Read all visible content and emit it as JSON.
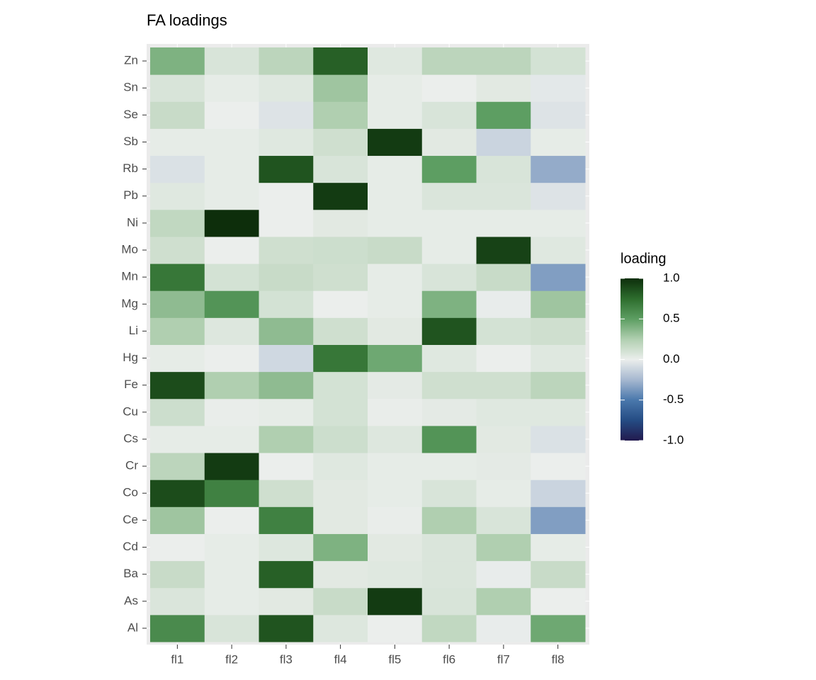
{
  "chart_data": {
    "type": "heatmap",
    "title": "FA loadings",
    "x": [
      "fl1",
      "fl2",
      "fl3",
      "fl4",
      "fl5",
      "fl6",
      "fl7",
      "fl8"
    ],
    "y": [
      "Al",
      "As",
      "Ba",
      "Cd",
      "Ce",
      "Co",
      "Cr",
      "Cs",
      "Cu",
      "Fe",
      "Hg",
      "Li",
      "Mg",
      "Mn",
      "Mo",
      "Ni",
      "Pb",
      "Rb",
      "Sb",
      "Se",
      "Sn",
      "Zn"
    ],
    "values": [
      [
        0.6,
        0.08,
        0.85,
        0.06,
        0.0,
        0.18,
        -0.01,
        0.45
      ],
      [
        0.07,
        0.02,
        0.04,
        0.15,
        0.95,
        0.08,
        0.25,
        0.0
      ],
      [
        0.15,
        0.02,
        0.8,
        0.04,
        0.05,
        0.07,
        -0.01,
        0.15
      ],
      [
        0.0,
        0.02,
        0.06,
        0.4,
        0.04,
        0.07,
        0.25,
        0.02
      ],
      [
        0.3,
        0.0,
        0.65,
        0.04,
        0.01,
        0.25,
        0.08,
        -0.35
      ],
      [
        0.88,
        0.65,
        0.12,
        0.04,
        0.02,
        0.08,
        0.02,
        -0.12
      ],
      [
        0.2,
        0.95,
        0.0,
        0.05,
        0.02,
        0.02,
        0.03,
        0.0
      ],
      [
        0.02,
        0.02,
        0.25,
        0.13,
        0.06,
        0.55,
        0.04,
        -0.06
      ],
      [
        0.13,
        0.01,
        0.02,
        0.1,
        0.01,
        0.03,
        0.05,
        0.05
      ],
      [
        0.88,
        0.25,
        0.35,
        0.1,
        0.03,
        0.12,
        0.12,
        0.2
      ],
      [
        0.02,
        0.0,
        -0.1,
        0.7,
        0.45,
        0.05,
        0.0,
        0.05
      ],
      [
        0.25,
        0.06,
        0.35,
        0.12,
        0.04,
        0.85,
        0.1,
        0.12
      ],
      [
        0.35,
        0.55,
        0.1,
        0.0,
        0.02,
        0.4,
        -0.01,
        0.3
      ],
      [
        0.7,
        0.1,
        0.15,
        0.12,
        0.02,
        0.08,
        0.15,
        -0.35
      ],
      [
        0.12,
        0.0,
        0.12,
        0.13,
        0.15,
        0.02,
        0.92,
        0.05
      ],
      [
        0.18,
        1.0,
        0.0,
        0.04,
        0.02,
        0.02,
        0.02,
        0.02
      ],
      [
        0.05,
        0.02,
        0.0,
        0.95,
        0.02,
        0.07,
        0.07,
        -0.05
      ],
      [
        -0.06,
        0.02,
        0.85,
        0.08,
        0.02,
        0.5,
        0.08,
        -0.3
      ],
      [
        0.02,
        0.02,
        0.05,
        0.12,
        0.95,
        0.04,
        -0.12,
        0.02
      ],
      [
        0.15,
        0.0,
        -0.05,
        0.25,
        0.02,
        0.08,
        0.5,
        -0.05
      ],
      [
        0.08,
        0.02,
        0.05,
        0.3,
        0.02,
        0.0,
        0.04,
        -0.03
      ],
      [
        0.4,
        0.08,
        0.2,
        0.8,
        0.05,
        0.2,
        0.2,
        0.1
      ]
    ],
    "legend_title": "loading",
    "zlim": [
      -1,
      1
    ],
    "zticks": [
      {
        "value": 1,
        "label": "1.0"
      },
      {
        "value": 0.5,
        "label": "0.5"
      },
      {
        "value": 0,
        "label": "0.0"
      },
      {
        "value": -0.5,
        "label": "-0.5"
      },
      {
        "value": -1,
        "label": "-1.0"
      }
    ],
    "colors": [
      "#221a4e",
      "#254c84",
      "#4a78ac",
      "#a6b8d0",
      "#ebeeec",
      "#b0cfb0",
      "#5d9e62",
      "#2d6d2d",
      "#0d2e0b"
    ]
  }
}
